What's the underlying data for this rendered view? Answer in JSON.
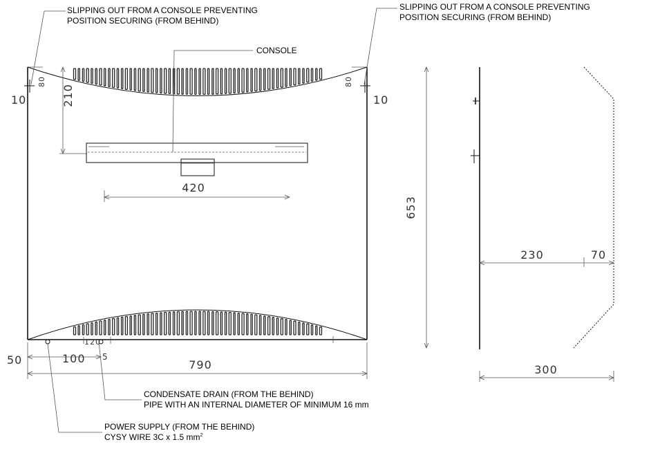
{
  "callouts": {
    "securing_left_line1": "SLIPPING OUT FROM A CONSOLE PREVENTING",
    "securing_left_line2": "POSITION SECURING (FROM BEHIND)",
    "securing_right_line1": "SLIPPING OUT FROM A CONSOLE PREVENTING",
    "securing_right_line2": "POSITION SECURING (FROM BEHIND)",
    "console": "CONSOLE",
    "drain_line1": "CONDENSATE DRAIN (FROM THE BEHIND)",
    "drain_line2": "PIPE WITH AN INTERNAL DIAMETER OF  MINIMUM 16 mm",
    "power_line1": "POWER SUPPLY (FROM THE BEHIND)",
    "power_line2": "CYSY WIRE 3C x 1.5 mm",
    "power_superscript": "2"
  },
  "dimensions": {
    "top_left_edge": "10",
    "top_left_small": "80",
    "console_height": "210",
    "top_right_small": "80",
    "top_right_edge": "10",
    "console_width": "420",
    "unit_height": "653",
    "depth_main": "230",
    "depth_front": "70",
    "depth_total": "300",
    "left_offset": "50",
    "pipe_spacing": "100",
    "pipe_small": "5",
    "pipe_gap": "120",
    "unit_width": "790"
  }
}
